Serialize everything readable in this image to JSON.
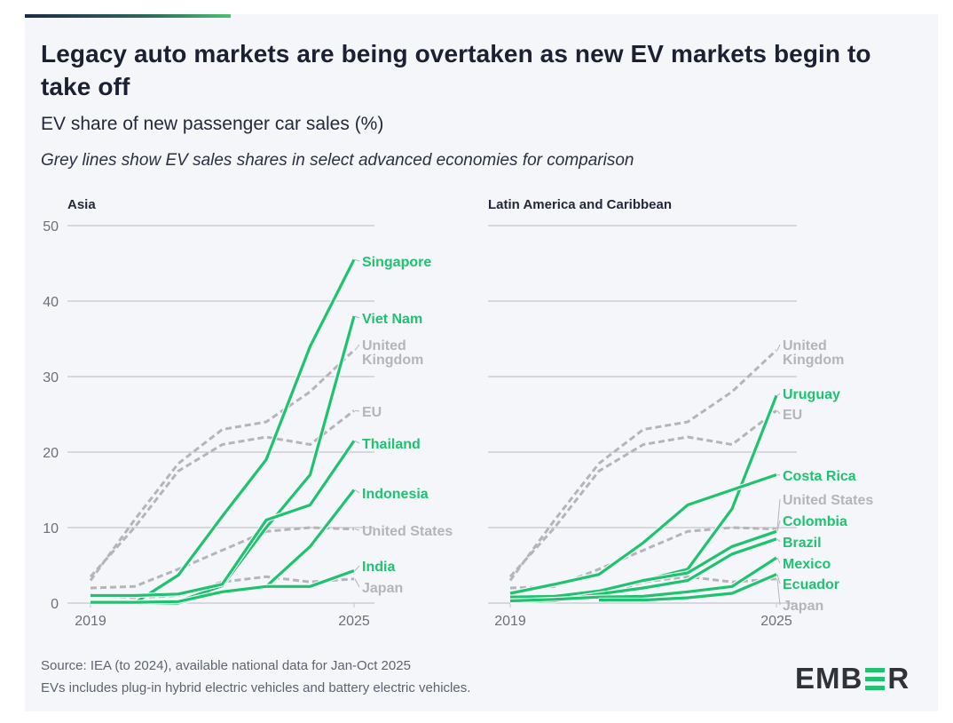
{
  "header": {
    "title": "Legacy auto markets are being overtaken as new EV markets begin to take off",
    "subtitle": "EV share of new passenger car sales (%)",
    "note": "Grey lines show EV sales shares in select advanced economies for comparison"
  },
  "footer": {
    "source": "Source: IEA (to 2024), available national data for Jan-Oct 2025",
    "definition": "EVs includes plug-in hybrid electric vehicles and battery electric vehicles.",
    "logo_left": "EMB",
    "logo_right": "R"
  },
  "colors": {
    "highlight": "#1fc36f",
    "comparison": "#b5b5b8",
    "grid": "#c3c5cc",
    "axis_text": "#6b6f7a"
  },
  "chart_data": [
    {
      "type": "line",
      "title": "Asia",
      "xlabel": "",
      "ylabel": "EV share of new passenger car sales (%)",
      "x": [
        2019,
        2020,
        2021,
        2022,
        2023,
        2024,
        2025
      ],
      "x_tick_labels": [
        "2019",
        "2025"
      ],
      "ylim": [
        0,
        50
      ],
      "y_ticks": [
        0,
        10,
        20,
        30,
        40,
        50
      ],
      "grid": true,
      "series": [
        {
          "name": "United Kingdom",
          "label": [
            "United",
            "Kingdom"
          ],
          "group": "comparison",
          "values": [
            3,
            11,
            18.5,
            23,
            24,
            28,
            33.5
          ]
        },
        {
          "name": "EU",
          "label": [
            "EU"
          ],
          "group": "comparison",
          "values": [
            3.5,
            10,
            17.5,
            21,
            22,
            21,
            25.5
          ]
        },
        {
          "name": "United States",
          "label": [
            "United States"
          ],
          "group": "comparison",
          "values": [
            2,
            2.2,
            4.5,
            7,
            9.5,
            10,
            9.8
          ]
        },
        {
          "name": "Japan",
          "label": [
            "Japan"
          ],
          "group": "comparison",
          "values": [
            1,
            0.7,
            1,
            2.8,
            3.5,
            2.8,
            3.2
          ]
        },
        {
          "name": "Singapore",
          "label": [
            "Singapore"
          ],
          "group": "highlight",
          "values": [
            0,
            0,
            3.7,
            11.5,
            19,
            34,
            45.5
          ]
        },
        {
          "name": "Viet Nam",
          "label": [
            "Viet Nam"
          ],
          "group": "highlight",
          "values": [
            0,
            0,
            0.2,
            2.3,
            10,
            17,
            38
          ]
        },
        {
          "name": "Thailand",
          "label": [
            "Thailand"
          ],
          "group": "highlight",
          "values": [
            1,
            1,
            1.2,
            2.5,
            11,
            13,
            21.5
          ]
        },
        {
          "name": "Indonesia",
          "label": [
            "Indonesia"
          ],
          "group": "highlight",
          "values": [
            0,
            0,
            0,
            1.5,
            2.2,
            7.5,
            15
          ]
        },
        {
          "name": "India",
          "label": [
            "India"
          ],
          "group": "highlight",
          "values": [
            0.1,
            0.1,
            0.2,
            1.5,
            2.2,
            2.2,
            4.3
          ]
        }
      ]
    },
    {
      "type": "line",
      "title": "Latin America and Caribbean",
      "xlabel": "",
      "ylabel": "EV share of new passenger car sales (%)",
      "x": [
        2019,
        2020,
        2021,
        2022,
        2023,
        2024,
        2025
      ],
      "x_tick_labels": [
        "2019",
        "2025"
      ],
      "ylim": [
        0,
        50
      ],
      "y_ticks": [
        0,
        10,
        20,
        30,
        40,
        50
      ],
      "grid": true,
      "series": [
        {
          "name": "United Kingdom",
          "label": [
            "United",
            "Kingdom"
          ],
          "group": "comparison",
          "values": [
            3,
            11,
            18.5,
            23,
            24,
            28,
            33.5
          ]
        },
        {
          "name": "EU",
          "label": [
            "EU"
          ],
          "group": "comparison",
          "values": [
            3.5,
            10,
            17.5,
            21,
            22,
            21,
            25.5
          ]
        },
        {
          "name": "United States",
          "label": [
            "United States"
          ],
          "group": "comparison",
          "values": [
            2,
            2.2,
            4.5,
            7,
            9.5,
            10,
            9.8
          ]
        },
        {
          "name": "Japan",
          "label": [
            "Japan"
          ],
          "group": "comparison",
          "values": [
            1,
            0.7,
            1,
            2.8,
            3.5,
            2.8,
            3.2
          ]
        },
        {
          "name": "Uruguay",
          "label": [
            "Uruguay"
          ],
          "group": "highlight",
          "values": [
            0.5,
            0.7,
            1.5,
            3,
            4.5,
            12.5,
            27.5
          ]
        },
        {
          "name": "Costa Rica",
          "label": [
            "Costa Rica"
          ],
          "group": "highlight",
          "values": [
            1.3,
            2.5,
            3.8,
            8,
            13,
            15,
            17
          ]
        },
        {
          "name": "Colombia",
          "label": [
            "Colombia"
          ],
          "group": "highlight",
          "values": [
            0.8,
            0.9,
            1.6,
            3,
            4,
            7.5,
            9.5
          ]
        },
        {
          "name": "Brazil",
          "label": [
            "Brazil"
          ],
          "group": "highlight",
          "values": [
            0.2,
            0.3,
            1.2,
            2,
            3,
            6.5,
            8.5
          ]
        },
        {
          "name": "Mexico",
          "label": [
            "Mexico"
          ],
          "group": "highlight",
          "values": [
            0.3,
            0.5,
            0.8,
            0.9,
            1.5,
            2.2,
            6
          ]
        },
        {
          "name": "Ecuador",
          "label": [
            "Ecuador"
          ],
          "group": "highlight",
          "values": [
            null,
            null,
            0.4,
            0.4,
            0.7,
            1.3,
            3.8
          ]
        }
      ]
    }
  ]
}
